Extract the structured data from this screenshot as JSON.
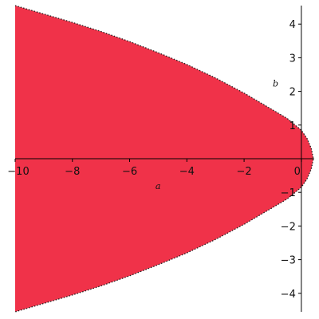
{
  "chart_data": {
    "type": "area",
    "title": "",
    "xlabel": "a",
    "ylabel": "b",
    "xlim": [
      -10,
      0.45
    ],
    "ylim": [
      -4.55,
      4.55
    ],
    "x_ticks": [
      -10,
      -8,
      -6,
      -4,
      -2,
      0
    ],
    "y_ticks": [
      -4,
      -3,
      -2,
      -1,
      1,
      2,
      3,
      4
    ],
    "grid": false,
    "legend": "none",
    "fill_color": "#f03249",
    "boundary_color": "#222222",
    "boundary_style": "dotted",
    "region": {
      "description_shown": false,
      "boundary": {
        "x": [
          -10,
          -9,
          -8,
          -7,
          -6,
          -5,
          -4,
          -3,
          -2,
          -1.5,
          -1,
          -0.5,
          0,
          0.2,
          0.35,
          0.42
        ],
        "b_upper": [
          4.55,
          4.3,
          4.05,
          3.78,
          3.48,
          3.15,
          2.8,
          2.4,
          1.95,
          1.7,
          1.45,
          1.2,
          0.85,
          0.6,
          0.3,
          0
        ]
      }
    }
  }
}
